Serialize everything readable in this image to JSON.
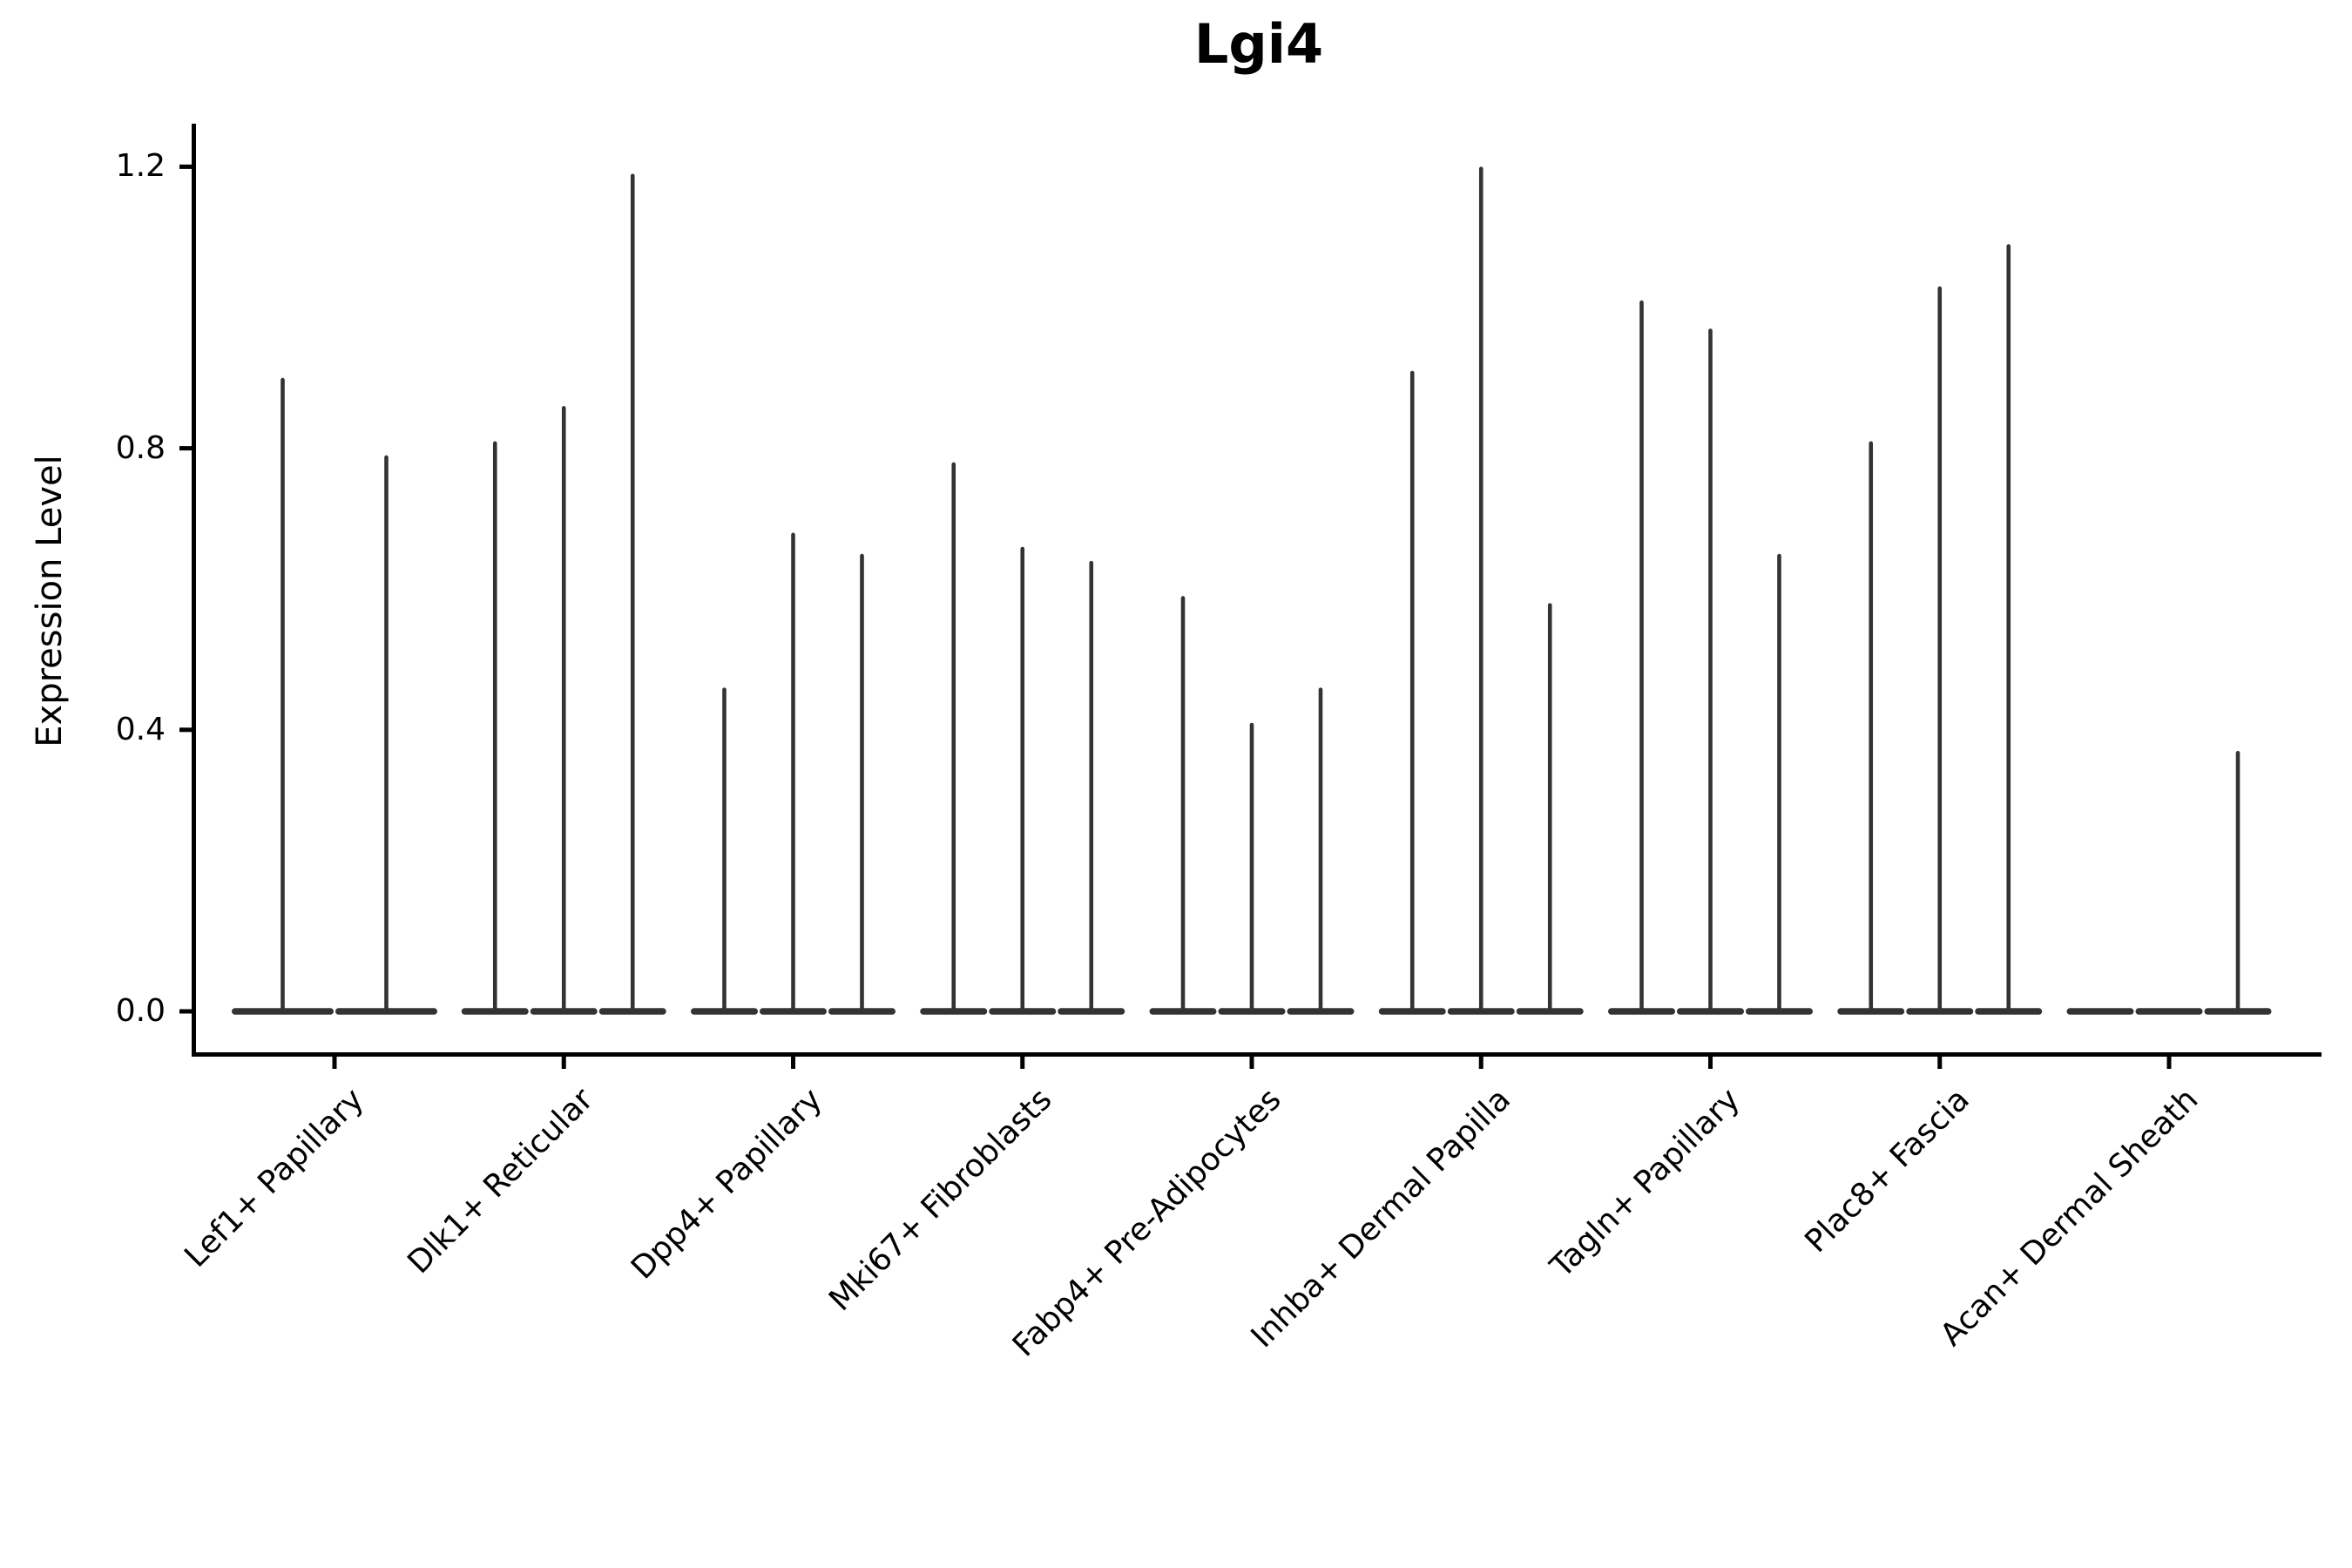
{
  "figure": {
    "title": "Lgi4",
    "background_color": "#ffffff",
    "axis_color": "#000000",
    "violin_color": "#333333"
  },
  "chart_data": {
    "type": "violin",
    "title": "Lgi4",
    "xlabel": "",
    "ylabel": "Expression Level",
    "ylim": [
      0,
      1.26
    ],
    "ytick_labels": [
      "0.0",
      "0.4",
      "0.8",
      "1.2"
    ],
    "ytick_values": [
      0.0,
      0.4,
      0.8,
      1.2
    ],
    "grid": false,
    "legend": "none",
    "violin_style": "thin density spike; bulk of distribution sits at 0 so each violin is a wide flat base at y=0 with a thin tail rising to its max",
    "categories": [
      "Lef1+ Papillary",
      "Dlk1+ Reticular",
      "Dpp4+ Papillary",
      "Mki67+ Fibroblasts",
      "Fabp4+ Pre-Adipocytes",
      "Inhba+ Dermal Papilla",
      "Tagln+ Papillary",
      "Plac8+ Fascia",
      "Acan+ Dermal Sheath"
    ],
    "groups": [
      {
        "category": "Lef1+ Papillary",
        "violin_max_expression": [
          0.9,
          0.79
        ]
      },
      {
        "category": "Dlk1+ Reticular",
        "violin_max_expression": [
          0.81,
          0.86,
          1.19
        ]
      },
      {
        "category": "Dpp4+ Papillary",
        "violin_max_expression": [
          0.46,
          0.68,
          0.65
        ]
      },
      {
        "category": "Mki67+ Fibroblasts",
        "violin_max_expression": [
          0.78,
          0.66,
          0.64
        ]
      },
      {
        "category": "Fabp4+ Pre-Adipocytes",
        "violin_max_expression": [
          0.59,
          0.41,
          0.46
        ]
      },
      {
        "category": "Inhba+ Dermal Papilla",
        "violin_max_expression": [
          0.91,
          1.2,
          0.58
        ]
      },
      {
        "category": "Tagln+ Papillary",
        "violin_max_expression": [
          1.01,
          0.97,
          0.65
        ]
      },
      {
        "category": "Plac8+ Fascia",
        "violin_max_expression": [
          0.81,
          1.03,
          1.09
        ]
      },
      {
        "category": "Acan+ Dermal Sheath",
        "violin_max_expression": [
          0.0,
          0.0,
          0.37
        ]
      }
    ]
  }
}
